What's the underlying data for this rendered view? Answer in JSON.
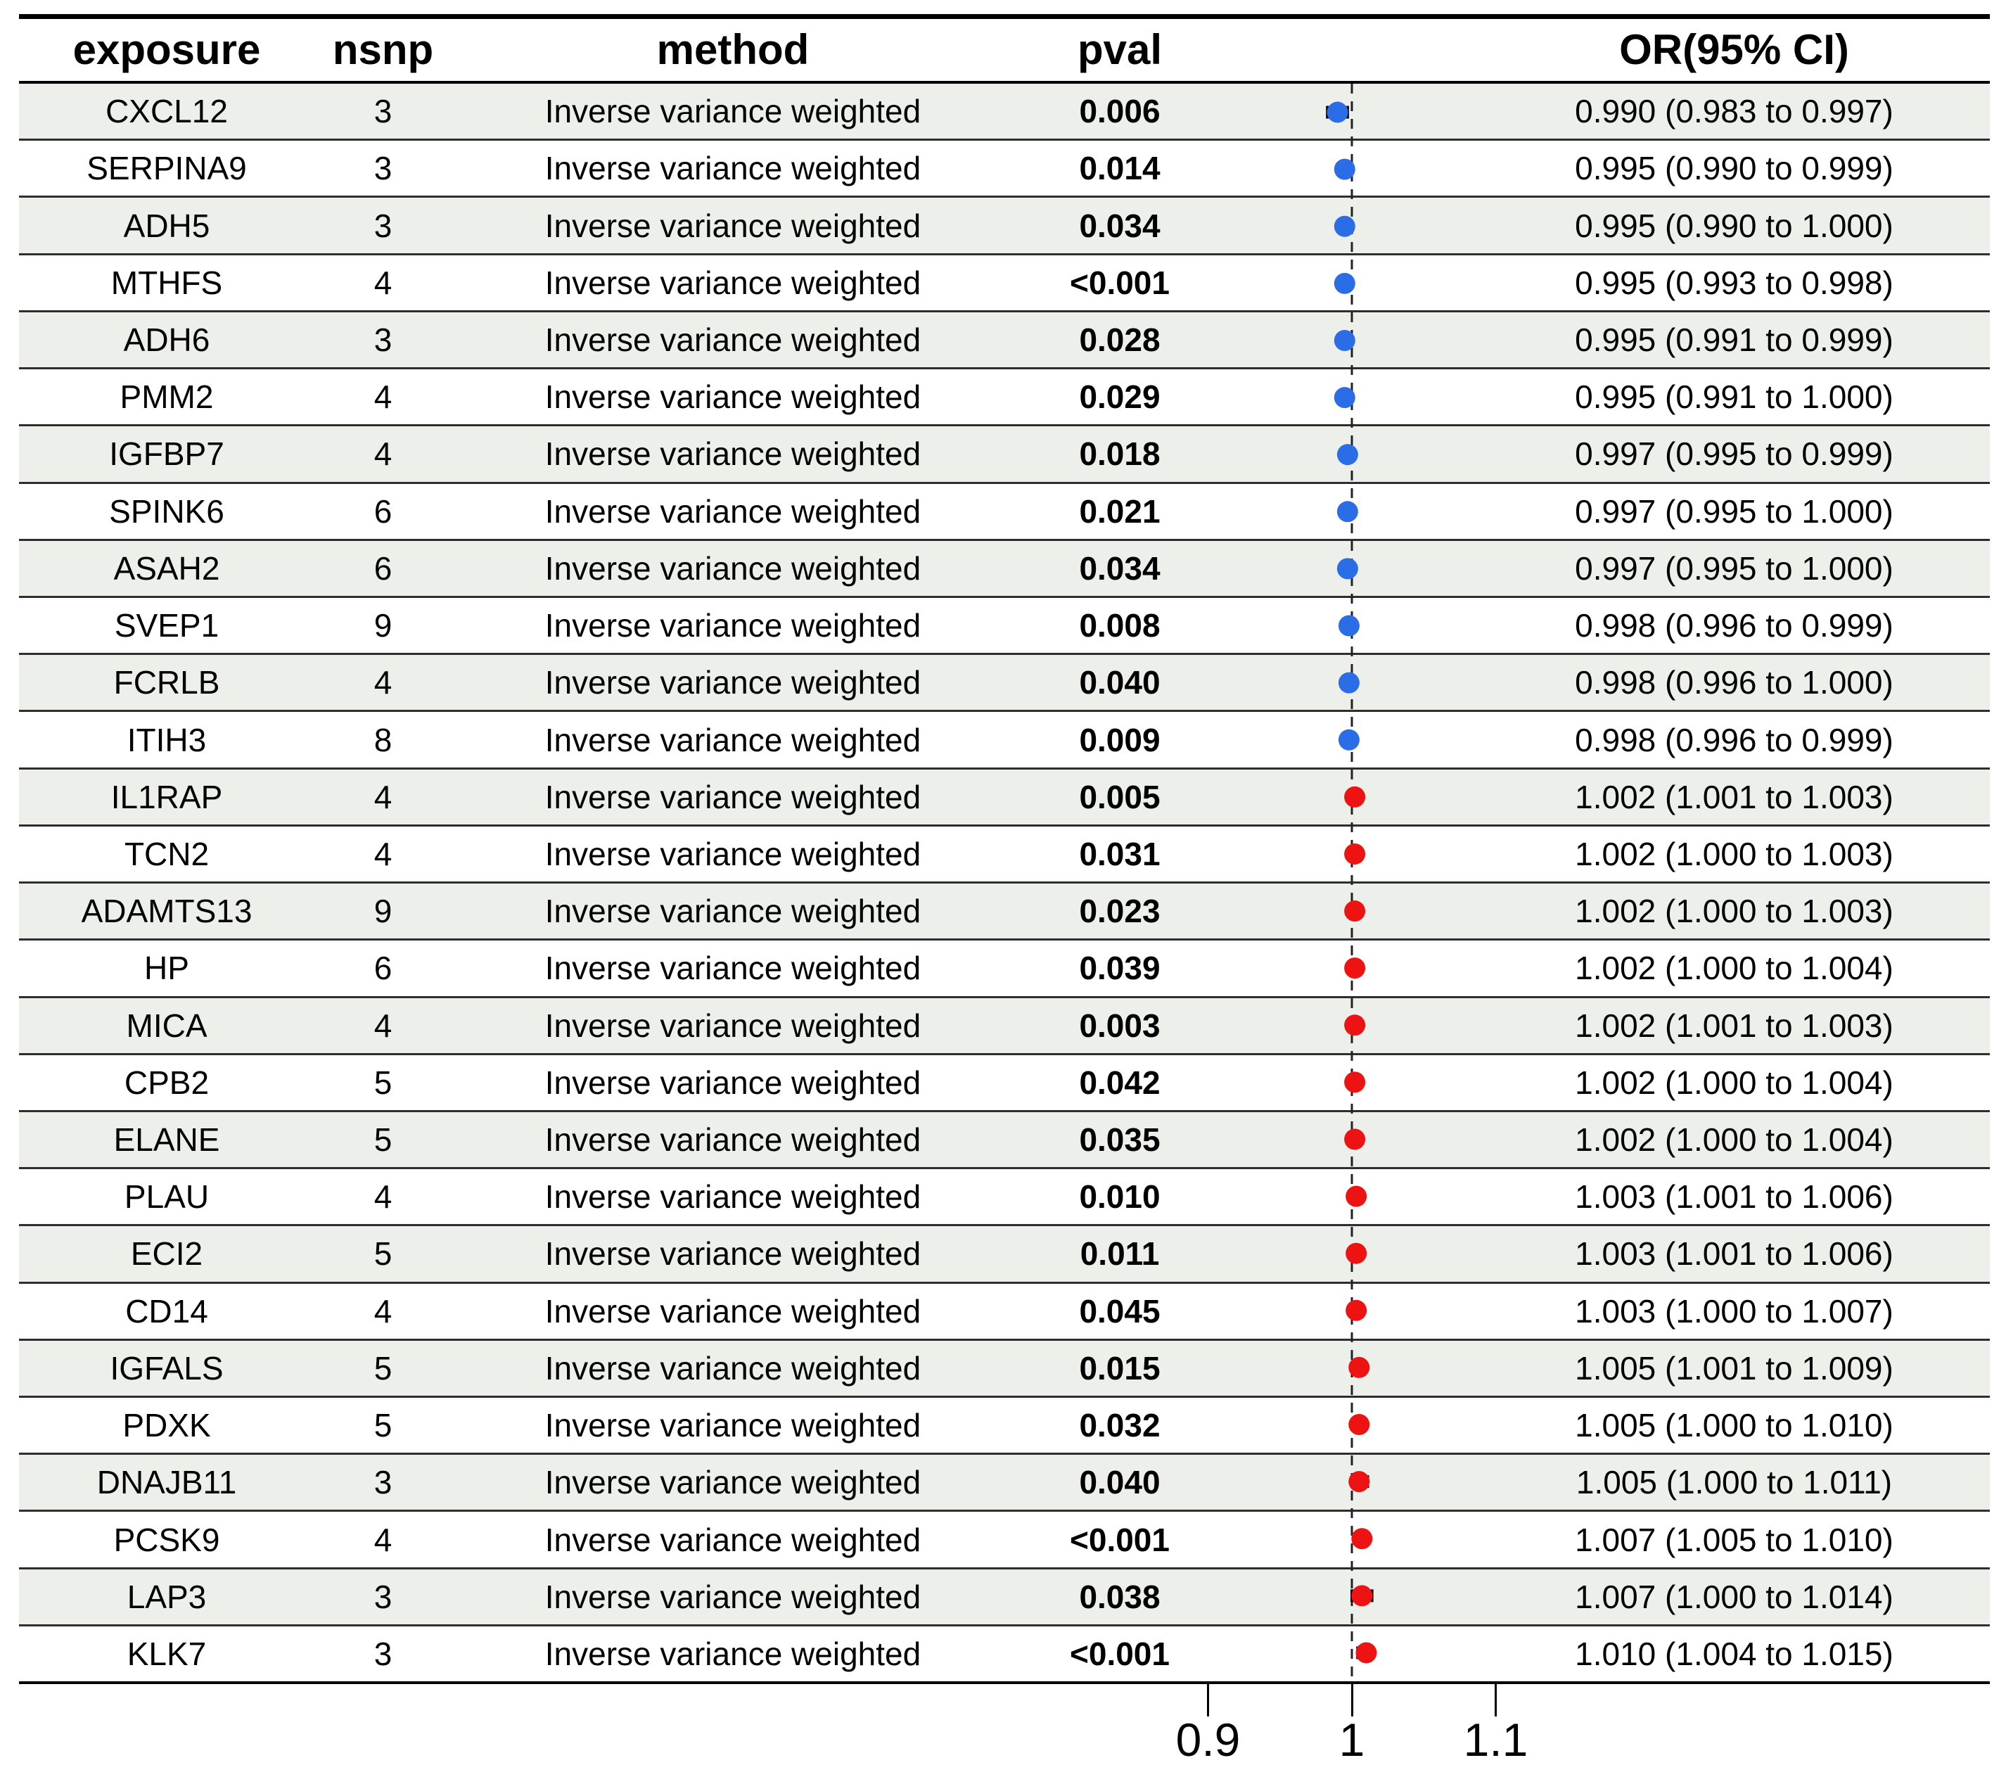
{
  "figure": {
    "headers": {
      "exposure": "exposure",
      "nsnp": "nsnp",
      "method": "method",
      "pval": "pval",
      "or_ci": "OR(95% CI)"
    }
  },
  "chart_data": {
    "type": "scatter",
    "subtype": "forest-plot",
    "title": "",
    "columns": [
      "exposure",
      "nsnp",
      "method",
      "pval",
      "OR(95% CI)"
    ],
    "x_axis": {
      "tick_labels": [
        "0.9",
        "1",
        "1.1"
      ],
      "tick_values": [
        0.9,
        1.0,
        1.1
      ],
      "reference_line": 1.0,
      "reference_line_style": "dashed"
    },
    "colors": {
      "or_below_1": "#2a6de6",
      "or_above_1": "#ee1313",
      "row_shade": "#edefeb",
      "error_bar": "#000000"
    },
    "rows": [
      {
        "exposure": "CXCL12",
        "nsnp": "3",
        "method": "Inverse variance weighted",
        "pval": "0.006",
        "or": 0.99,
        "ci_low": 0.983,
        "ci_high": 0.997,
        "or_text": "0.990 (0.983 to 0.997)"
      },
      {
        "exposure": "SERPINA9",
        "nsnp": "3",
        "method": "Inverse variance weighted",
        "pval": "0.014",
        "or": 0.995,
        "ci_low": 0.99,
        "ci_high": 0.999,
        "or_text": "0.995 (0.990 to 0.999)"
      },
      {
        "exposure": "ADH5",
        "nsnp": "3",
        "method": "Inverse variance weighted",
        "pval": "0.034",
        "or": 0.995,
        "ci_low": 0.99,
        "ci_high": 1.0,
        "or_text": "0.995 (0.990 to 1.000)"
      },
      {
        "exposure": "MTHFS",
        "nsnp": "4",
        "method": "Inverse variance weighted",
        "pval": "<0.001",
        "or": 0.995,
        "ci_low": 0.993,
        "ci_high": 0.998,
        "or_text": "0.995 (0.993 to 0.998)"
      },
      {
        "exposure": "ADH6",
        "nsnp": "3",
        "method": "Inverse variance weighted",
        "pval": "0.028",
        "or": 0.995,
        "ci_low": 0.991,
        "ci_high": 0.999,
        "or_text": "0.995 (0.991 to 0.999)"
      },
      {
        "exposure": "PMM2",
        "nsnp": "4",
        "method": "Inverse variance weighted",
        "pval": "0.029",
        "or": 0.995,
        "ci_low": 0.991,
        "ci_high": 1.0,
        "or_text": "0.995 (0.991 to 1.000)"
      },
      {
        "exposure": "IGFBP7",
        "nsnp": "4",
        "method": "Inverse variance weighted",
        "pval": "0.018",
        "or": 0.997,
        "ci_low": 0.995,
        "ci_high": 0.999,
        "or_text": "0.997 (0.995 to 0.999)"
      },
      {
        "exposure": "SPINK6",
        "nsnp": "6",
        "method": "Inverse variance weighted",
        "pval": "0.021",
        "or": 0.997,
        "ci_low": 0.995,
        "ci_high": 1.0,
        "or_text": "0.997 (0.995 to 1.000)"
      },
      {
        "exposure": "ASAH2",
        "nsnp": "6",
        "method": "Inverse variance weighted",
        "pval": "0.034",
        "or": 0.997,
        "ci_low": 0.995,
        "ci_high": 1.0,
        "or_text": "0.997 (0.995 to 1.000)"
      },
      {
        "exposure": "SVEP1",
        "nsnp": "9",
        "method": "Inverse variance weighted",
        "pval": "0.008",
        "or": 0.998,
        "ci_low": 0.996,
        "ci_high": 0.999,
        "or_text": "0.998 (0.996 to 0.999)"
      },
      {
        "exposure": "FCRLB",
        "nsnp": "4",
        "method": "Inverse variance weighted",
        "pval": "0.040",
        "or": 0.998,
        "ci_low": 0.996,
        "ci_high": 1.0,
        "or_text": "0.998 (0.996 to 1.000)"
      },
      {
        "exposure": "ITIH3",
        "nsnp": "8",
        "method": "Inverse variance weighted",
        "pval": "0.009",
        "or": 0.998,
        "ci_low": 0.996,
        "ci_high": 0.999,
        "or_text": "0.998 (0.996 to 0.999)"
      },
      {
        "exposure": "IL1RAP",
        "nsnp": "4",
        "method": "Inverse variance weighted",
        "pval": "0.005",
        "or": 1.002,
        "ci_low": 1.001,
        "ci_high": 1.003,
        "or_text": "1.002 (1.001 to 1.003)"
      },
      {
        "exposure": "TCN2",
        "nsnp": "4",
        "method": "Inverse variance weighted",
        "pval": "0.031",
        "or": 1.002,
        "ci_low": 1.0,
        "ci_high": 1.003,
        "or_text": "1.002 (1.000 to 1.003)"
      },
      {
        "exposure": "ADAMTS13",
        "nsnp": "9",
        "method": "Inverse variance weighted",
        "pval": "0.023",
        "or": 1.002,
        "ci_low": 1.0,
        "ci_high": 1.003,
        "or_text": "1.002 (1.000 to 1.003)"
      },
      {
        "exposure": "HP",
        "nsnp": "6",
        "method": "Inverse variance weighted",
        "pval": "0.039",
        "or": 1.002,
        "ci_low": 1.0,
        "ci_high": 1.004,
        "or_text": "1.002 (1.000 to 1.004)"
      },
      {
        "exposure": "MICA",
        "nsnp": "4",
        "method": "Inverse variance weighted",
        "pval": "0.003",
        "or": 1.002,
        "ci_low": 1.001,
        "ci_high": 1.003,
        "or_text": "1.002 (1.001 to 1.003)"
      },
      {
        "exposure": "CPB2",
        "nsnp": "5",
        "method": "Inverse variance weighted",
        "pval": "0.042",
        "or": 1.002,
        "ci_low": 1.0,
        "ci_high": 1.004,
        "or_text": "1.002 (1.000 to 1.004)"
      },
      {
        "exposure": "ELANE",
        "nsnp": "5",
        "method": "Inverse variance weighted",
        "pval": "0.035",
        "or": 1.002,
        "ci_low": 1.0,
        "ci_high": 1.004,
        "or_text": "1.002 (1.000 to 1.004)"
      },
      {
        "exposure": "PLAU",
        "nsnp": "4",
        "method": "Inverse variance weighted",
        "pval": "0.010",
        "or": 1.003,
        "ci_low": 1.001,
        "ci_high": 1.006,
        "or_text": "1.003 (1.001 to 1.006)"
      },
      {
        "exposure": "ECI2",
        "nsnp": "5",
        "method": "Inverse variance weighted",
        "pval": "0.011",
        "or": 1.003,
        "ci_low": 1.001,
        "ci_high": 1.006,
        "or_text": "1.003 (1.001 to 1.006)"
      },
      {
        "exposure": "CD14",
        "nsnp": "4",
        "method": "Inverse variance weighted",
        "pval": "0.045",
        "or": 1.003,
        "ci_low": 1.0,
        "ci_high": 1.007,
        "or_text": "1.003 (1.000 to 1.007)"
      },
      {
        "exposure": "IGFALS",
        "nsnp": "5",
        "method": "Inverse variance weighted",
        "pval": "0.015",
        "or": 1.005,
        "ci_low": 1.001,
        "ci_high": 1.009,
        "or_text": "1.005 (1.001 to 1.009)"
      },
      {
        "exposure": "PDXK",
        "nsnp": "5",
        "method": "Inverse variance weighted",
        "pval": "0.032",
        "or": 1.005,
        "ci_low": 1.0,
        "ci_high": 1.01,
        "or_text": "1.005 (1.000 to 1.010)"
      },
      {
        "exposure": "DNAJB11",
        "nsnp": "3",
        "method": "Inverse variance weighted",
        "pval": "0.040",
        "or": 1.005,
        "ci_low": 1.0,
        "ci_high": 1.011,
        "or_text": "1.005 (1.000 to 1.011)"
      },
      {
        "exposure": "PCSK9",
        "nsnp": "4",
        "method": "Inverse variance weighted",
        "pval": "<0.001",
        "or": 1.007,
        "ci_low": 1.005,
        "ci_high": 1.01,
        "or_text": "1.007 (1.005 to 1.010)"
      },
      {
        "exposure": "LAP3",
        "nsnp": "3",
        "method": "Inverse variance weighted",
        "pval": "0.038",
        "or": 1.007,
        "ci_low": 1.0,
        "ci_high": 1.014,
        "or_text": "1.007 (1.000 to 1.014)"
      },
      {
        "exposure": "KLK7",
        "nsnp": "3",
        "method": "Inverse variance weighted",
        "pval": "<0.001",
        "or": 1.01,
        "ci_low": 1.004,
        "ci_high": 1.015,
        "or_text": "1.010 (1.004 to 1.015)"
      }
    ]
  }
}
